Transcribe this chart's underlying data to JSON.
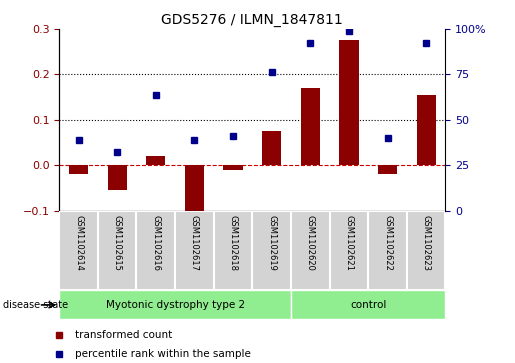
{
  "title": "GDS5276 / ILMN_1847811",
  "samples": [
    "GSM1102614",
    "GSM1102615",
    "GSM1102616",
    "GSM1102617",
    "GSM1102618",
    "GSM1102619",
    "GSM1102620",
    "GSM1102621",
    "GSM1102622",
    "GSM1102623"
  ],
  "transformed_count": [
    -0.02,
    -0.055,
    0.02,
    -0.11,
    -0.01,
    0.075,
    0.17,
    0.275,
    -0.02,
    0.155
  ],
  "percentile_rank": [
    0.055,
    0.03,
    0.155,
    0.055,
    0.065,
    0.205,
    0.27,
    0.295,
    0.06,
    0.27
  ],
  "left_ylim": [
    -0.1,
    0.3
  ],
  "right_ylim": [
    0,
    100
  ],
  "left_yticks": [
    -0.1,
    0.0,
    0.1,
    0.2,
    0.3
  ],
  "right_yticks": [
    0,
    25,
    50,
    75,
    100
  ],
  "disease_groups": [
    {
      "label": "Myotonic dystrophy type 2",
      "color": "#90ee90"
    },
    {
      "label": "control",
      "color": "#90ee90"
    }
  ],
  "bar_color": "#8b0000",
  "dot_color": "#00008b",
  "zero_line_color": "#cc0000",
  "dotted_line_color": "#000000",
  "sample_box_color": "#d3d3d3",
  "disease_state_label": "disease state",
  "legend_bar_label": "transformed count",
  "legend_dot_label": "percentile rank within the sample",
  "n_disease": 6,
  "n_control": 4
}
